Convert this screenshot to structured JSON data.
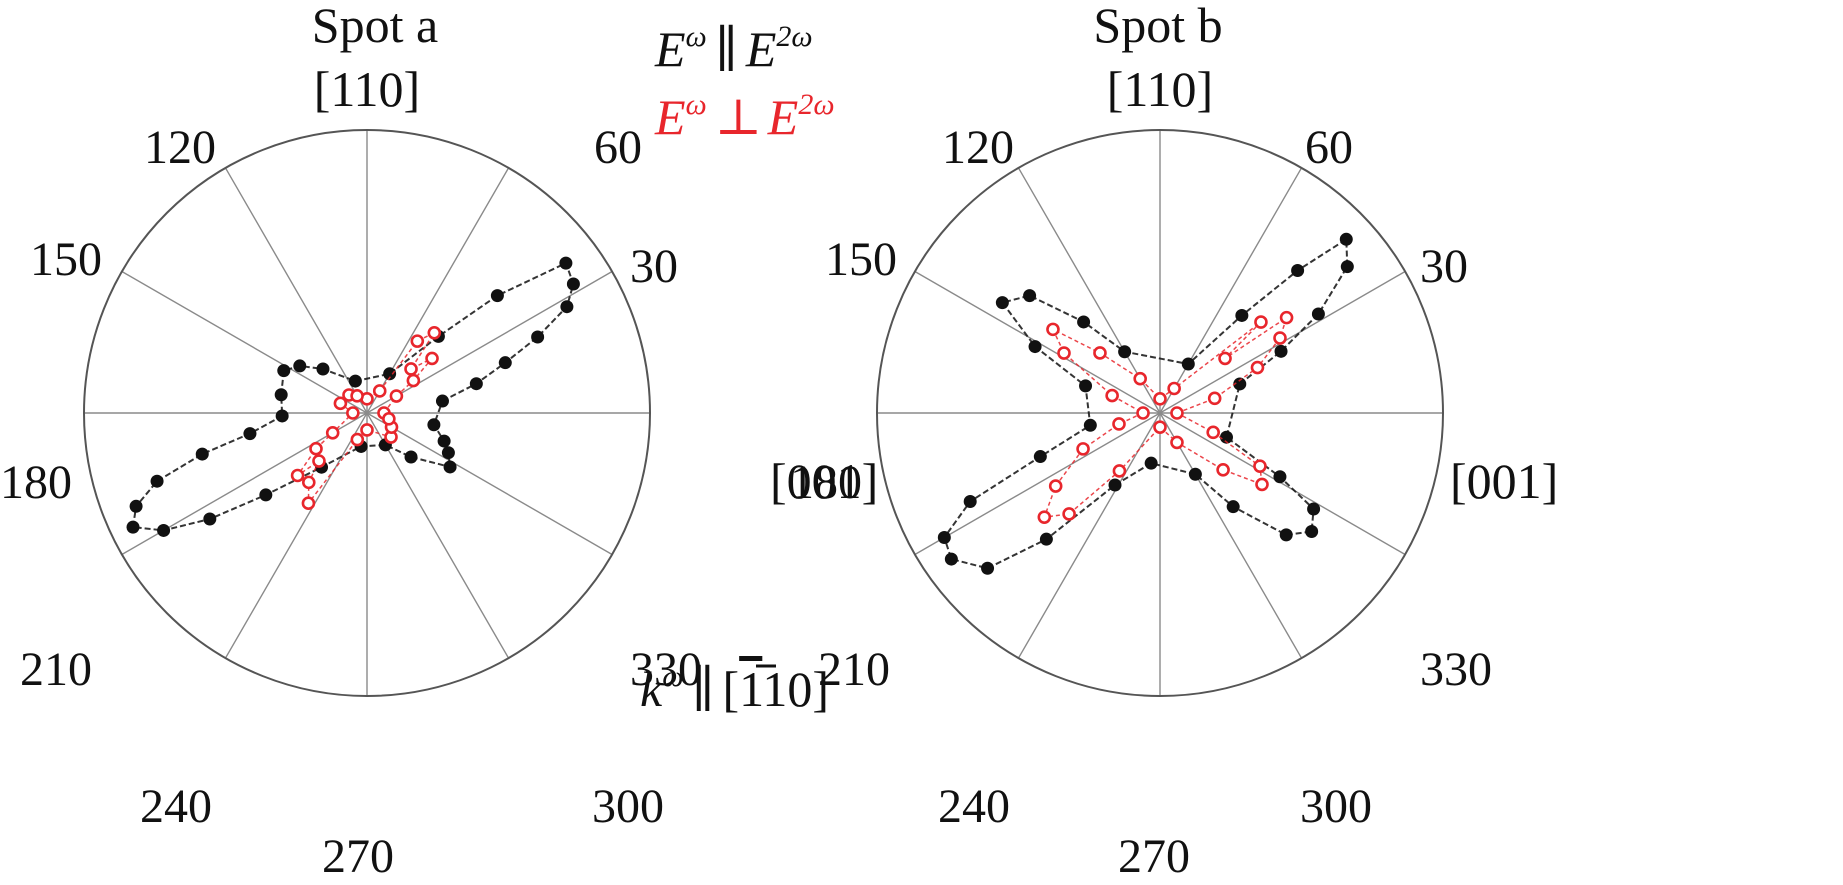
{
  "legend": {
    "parallel": {
      "E": "E",
      "omega": "ω",
      "rel": "∥",
      "two_omega": "2ω",
      "color": "#111111"
    },
    "perpendicular": {
      "E": "E",
      "omega": "ω",
      "rel": "⊥",
      "two_omega": "2ω",
      "color": "#e8262c"
    }
  },
  "k_label": {
    "k": "k",
    "omega": "ω",
    "rel": "∥",
    "bracket_open": "[",
    "bar_digit": "1",
    "rest": "10]"
  },
  "colors": {
    "parallel": "#111111",
    "perpendicular": "#e8262c",
    "circle": "#555555",
    "spokes": "#8a8a8a"
  },
  "chart_data": [
    {
      "type": "polar-scatter",
      "title": "Spot a",
      "top_axis_label": "[110]",
      "right_axis_label": "[001]",
      "angle_ticks": [
        "30",
        "60",
        "120",
        "150",
        "180",
        "210",
        "240",
        "270",
        "300",
        "330"
      ],
      "r_range": [
        0,
        1
      ],
      "series": [
        {
          "legend_ref": "parallel",
          "marker": "filled-circle",
          "points": [
            {
              "angle": 37,
              "r": 0.88
            },
            {
              "angle": 32,
              "r": 0.86
            },
            {
              "angle": 28,
              "r": 0.8
            },
            {
              "angle": 24,
              "r": 0.66
            },
            {
              "angle": 20,
              "r": 0.52
            },
            {
              "angle": 15,
              "r": 0.4
            },
            {
              "angle": 9,
              "r": 0.27
            },
            {
              "angle": -10,
              "r": 0.24
            },
            {
              "angle": -20,
              "r": 0.29
            },
            {
              "angle": -26,
              "r": 0.32
            },
            {
              "angle": -33,
              "r": 0.35
            },
            {
              "angle": -45,
              "r": 0.22
            },
            {
              "angle": -60,
              "r": 0.13
            },
            {
              "angle": -100,
              "r": 0.12
            },
            {
              "angle": -130,
              "r": 0.25
            },
            {
              "angle": -141,
              "r": 0.46
            },
            {
              "angle": -146,
              "r": 0.67
            },
            {
              "angle": -150,
              "r": 0.83
            },
            {
              "angle": -154,
              "r": 0.92
            },
            {
              "angle": -158,
              "r": 0.88
            },
            {
              "angle": -162,
              "r": 0.78
            },
            {
              "angle": -166,
              "r": 0.6
            },
            {
              "angle": -170,
              "r": 0.42
            },
            {
              "angle": -178,
              "r": 0.3
            },
            {
              "angle": 168,
              "r": 0.31
            },
            {
              "angle": 153,
              "r": 0.33
            },
            {
              "angle": 145,
              "r": 0.29
            },
            {
              "angle": 135,
              "r": 0.22
            },
            {
              "angle": 110,
              "r": 0.12
            },
            {
              "angle": 60,
              "r": 0.16
            },
            {
              "angle": 47,
              "r": 0.37
            },
            {
              "angle": 42,
              "r": 0.62
            }
          ]
        },
        {
          "legend_ref": "perpendicular",
          "marker": "open-circle",
          "points": [
            {
              "angle": 0,
              "r": 0.06
            },
            {
              "angle": 30,
              "r": 0.12
            },
            {
              "angle": 45,
              "r": 0.22
            },
            {
              "angle": 55,
              "r": 0.31
            },
            {
              "angle": 50,
              "r": 0.37
            },
            {
              "angle": 40,
              "r": 0.3
            },
            {
              "angle": 35,
              "r": 0.2
            },
            {
              "angle": 90,
              "r": 0.05
            },
            {
              "angle": 135,
              "r": 0.09
            },
            {
              "angle": 160,
              "r": 0.1
            },
            {
              "angle": 180,
              "r": 0.05
            },
            {
              "angle": 210,
              "r": 0.14
            },
            {
              "angle": 225,
              "r": 0.24
            },
            {
              "angle": 230,
              "r": 0.32
            },
            {
              "angle": 237,
              "r": 0.38
            },
            {
              "angle": 222,
              "r": 0.33
            },
            {
              "angle": 215,
              "r": 0.22
            },
            {
              "angle": 270,
              "r": 0.06
            },
            {
              "angle": 315,
              "r": 0.12
            },
            {
              "angle": 330,
              "r": 0.1
            },
            {
              "angle": 345,
              "r": 0.08
            },
            {
              "angle": 120,
              "r": 0.07
            },
            {
              "angle": 60,
              "r": 0.09
            },
            {
              "angle": 250,
              "r": 0.1
            }
          ]
        }
      ]
    },
    {
      "type": "polar-scatter",
      "title": "Spot b",
      "top_axis_label": "[110]",
      "right_axis_label": "[001]",
      "angle_ticks": [
        "30",
        "60",
        "120",
        "150",
        "180",
        "210",
        "240",
        "270",
        "300",
        "330"
      ],
      "r_range": [
        0,
        1
      ],
      "series": [
        {
          "legend_ref": "parallel",
          "marker": "filled-circle",
          "points": [
            {
              "angle": 43,
              "r": 0.9
            },
            {
              "angle": 38,
              "r": 0.84
            },
            {
              "angle": 32,
              "r": 0.66
            },
            {
              "angle": 27,
              "r": 0.48
            },
            {
              "angle": 20,
              "r": 0.3
            },
            {
              "angle": -20,
              "r": 0.25
            },
            {
              "angle": -28,
              "r": 0.48
            },
            {
              "angle": -32,
              "r": 0.64
            },
            {
              "angle": -38,
              "r": 0.68
            },
            {
              "angle": -44,
              "r": 0.62
            },
            {
              "angle": -52,
              "r": 0.42
            },
            {
              "angle": -60,
              "r": 0.25
            },
            {
              "angle": -100,
              "r": 0.18
            },
            {
              "angle": -122,
              "r": 0.3
            },
            {
              "angle": -132,
              "r": 0.6
            },
            {
              "angle": -138,
              "r": 0.82
            },
            {
              "angle": -145,
              "r": 0.9
            },
            {
              "angle": -150,
              "r": 0.88
            },
            {
              "angle": -155,
              "r": 0.74
            },
            {
              "angle": -160,
              "r": 0.45
            },
            {
              "angle": -170,
              "r": 0.25
            },
            {
              "angle": 160,
              "r": 0.28
            },
            {
              "angle": 152,
              "r": 0.5
            },
            {
              "angle": 145,
              "r": 0.68
            },
            {
              "angle": 138,
              "r": 0.62
            },
            {
              "angle": 130,
              "r": 0.42
            },
            {
              "angle": 120,
              "r": 0.25
            },
            {
              "angle": 60,
              "r": 0.2
            },
            {
              "angle": 50,
              "r": 0.45
            },
            {
              "angle": 46,
              "r": 0.7
            }
          ]
        },
        {
          "legend_ref": "perpendicular",
          "marker": "open-circle",
          "points": [
            {
              "angle": 15,
              "r": 0.2
            },
            {
              "angle": 25,
              "r": 0.38
            },
            {
              "angle": 32,
              "r": 0.5
            },
            {
              "angle": 37,
              "r": 0.56
            },
            {
              "angle": 42,
              "r": 0.48
            },
            {
              "angle": 40,
              "r": 0.3
            },
            {
              "angle": 60,
              "r": 0.1
            },
            {
              "angle": 120,
              "r": 0.14
            },
            {
              "angle": 135,
              "r": 0.3
            },
            {
              "angle": 142,
              "r": 0.48
            },
            {
              "angle": 148,
              "r": 0.4
            },
            {
              "angle": 160,
              "r": 0.18
            },
            {
              "angle": 195,
              "r": 0.15
            },
            {
              "angle": 205,
              "r": 0.3
            },
            {
              "angle": 215,
              "r": 0.45
            },
            {
              "angle": 222,
              "r": 0.55
            },
            {
              "angle": 228,
              "r": 0.48
            },
            {
              "angle": 235,
              "r": 0.25
            },
            {
              "angle": 300,
              "r": 0.12
            },
            {
              "angle": 318,
              "r": 0.3
            },
            {
              "angle": 325,
              "r": 0.44
            },
            {
              "angle": 332,
              "r": 0.4
            },
            {
              "angle": 340,
              "r": 0.2
            },
            {
              "angle": 0,
              "r": 0.06
            },
            {
              "angle": 90,
              "r": 0.05
            },
            {
              "angle": 180,
              "r": 0.06
            },
            {
              "angle": 270,
              "r": 0.05
            }
          ]
        }
      ]
    }
  ]
}
